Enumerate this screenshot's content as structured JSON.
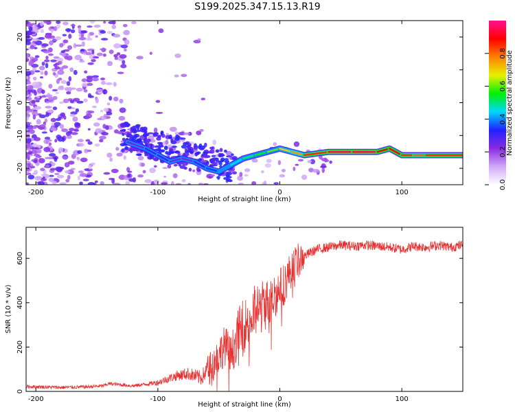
{
  "page_title": "S199.2025.347.15.13.R19",
  "chart_data": [
    {
      "type": "heatmap",
      "title": "S199.2025.347.15.13.R19",
      "xlabel": "Height of straight line (km)",
      "ylabel": "Frequency (Hz)",
      "xlim": [
        -208,
        150
      ],
      "ylim": [
        -25,
        25
      ],
      "xticks": [
        -200,
        -100,
        0,
        100
      ],
      "xtick_labels": [
        "-200",
        "-100",
        "0",
        "100"
      ],
      "yticks": [
        20,
        10,
        0,
        -10,
        -20
      ],
      "ytick_labels": [
        "20",
        "10",
        "0",
        "-10",
        "-20"
      ],
      "colorbar": {
        "label": "Normalized spectral amplitude",
        "range": [
          0.0,
          1.0
        ],
        "ticks": [
          0.0,
          0.2,
          0.4,
          0.6,
          0.8
        ],
        "tick_labels": [
          "0.0",
          "0.2",
          "0.4",
          "0.6",
          "0.8"
        ],
        "colors": [
          "#ffffff",
          "#d0a8f8",
          "#8a2be2",
          "#2020ff",
          "#00d8ff",
          "#00f000",
          "#e8f000",
          "#ff8000",
          "#ff0000",
          "#ff1090"
        ]
      },
      "ridge": {
        "x": [
          -125,
          -110,
          -100,
          -90,
          -80,
          -70,
          -60,
          -50,
          -40,
          -30,
          -20,
          -10,
          0,
          10,
          20,
          40,
          60,
          80,
          90,
          100,
          110,
          120,
          150
        ],
        "y": [
          -12,
          -14,
          -16,
          -18,
          -17,
          -18,
          -20,
          -21,
          -19,
          -17,
          -16,
          -15,
          -14,
          -15,
          -16,
          -15,
          -15,
          -15,
          -14,
          -16,
          -16,
          -16,
          -16
        ],
        "amplitude": [
          0.25,
          0.3,
          0.3,
          0.25,
          0.25,
          0.3,
          0.35,
          0.4,
          0.45,
          0.5,
          0.55,
          0.6,
          0.7,
          0.75,
          0.85,
          0.95,
          0.95,
          0.9,
          0.9,
          0.85,
          0.8,
          0.85,
          0.9
        ]
      }
    },
    {
      "type": "line",
      "xlabel": "Height of straight line (km)",
      "ylabel": "SNR (10 * v/v)",
      "xlim": [
        -208,
        150
      ],
      "ylim": [
        0,
        740
      ],
      "xticks": [
        -200,
        -100,
        0,
        100
      ],
      "xtick_labels": [
        "-200",
        "-100",
        "0",
        "100"
      ],
      "yticks": [
        0,
        200,
        400,
        600
      ],
      "ytick_labels": [
        "0",
        "200",
        "400",
        "600"
      ],
      "line_color": "#e83030",
      "series": [
        {
          "name": "SNR",
          "x": [
            -208,
            -180,
            -160,
            -145,
            -140,
            -120,
            -100,
            -85,
            -75,
            -65,
            -55,
            -45,
            -40,
            -35,
            -30,
            -25,
            -20,
            -15,
            -10,
            -5,
            0,
            5,
            10,
            15,
            20,
            30,
            40,
            50,
            60,
            70,
            80,
            90,
            100,
            110,
            120,
            130,
            140,
            150
          ],
          "y": [
            22,
            18,
            20,
            25,
            35,
            25,
            40,
            70,
            80,
            60,
            120,
            210,
            150,
            260,
            300,
            320,
            360,
            380,
            400,
            430,
            460,
            500,
            560,
            590,
            610,
            640,
            650,
            660,
            655,
            660,
            655,
            650,
            640,
            655,
            650,
            660,
            650,
            660
          ]
        }
      ]
    }
  ]
}
